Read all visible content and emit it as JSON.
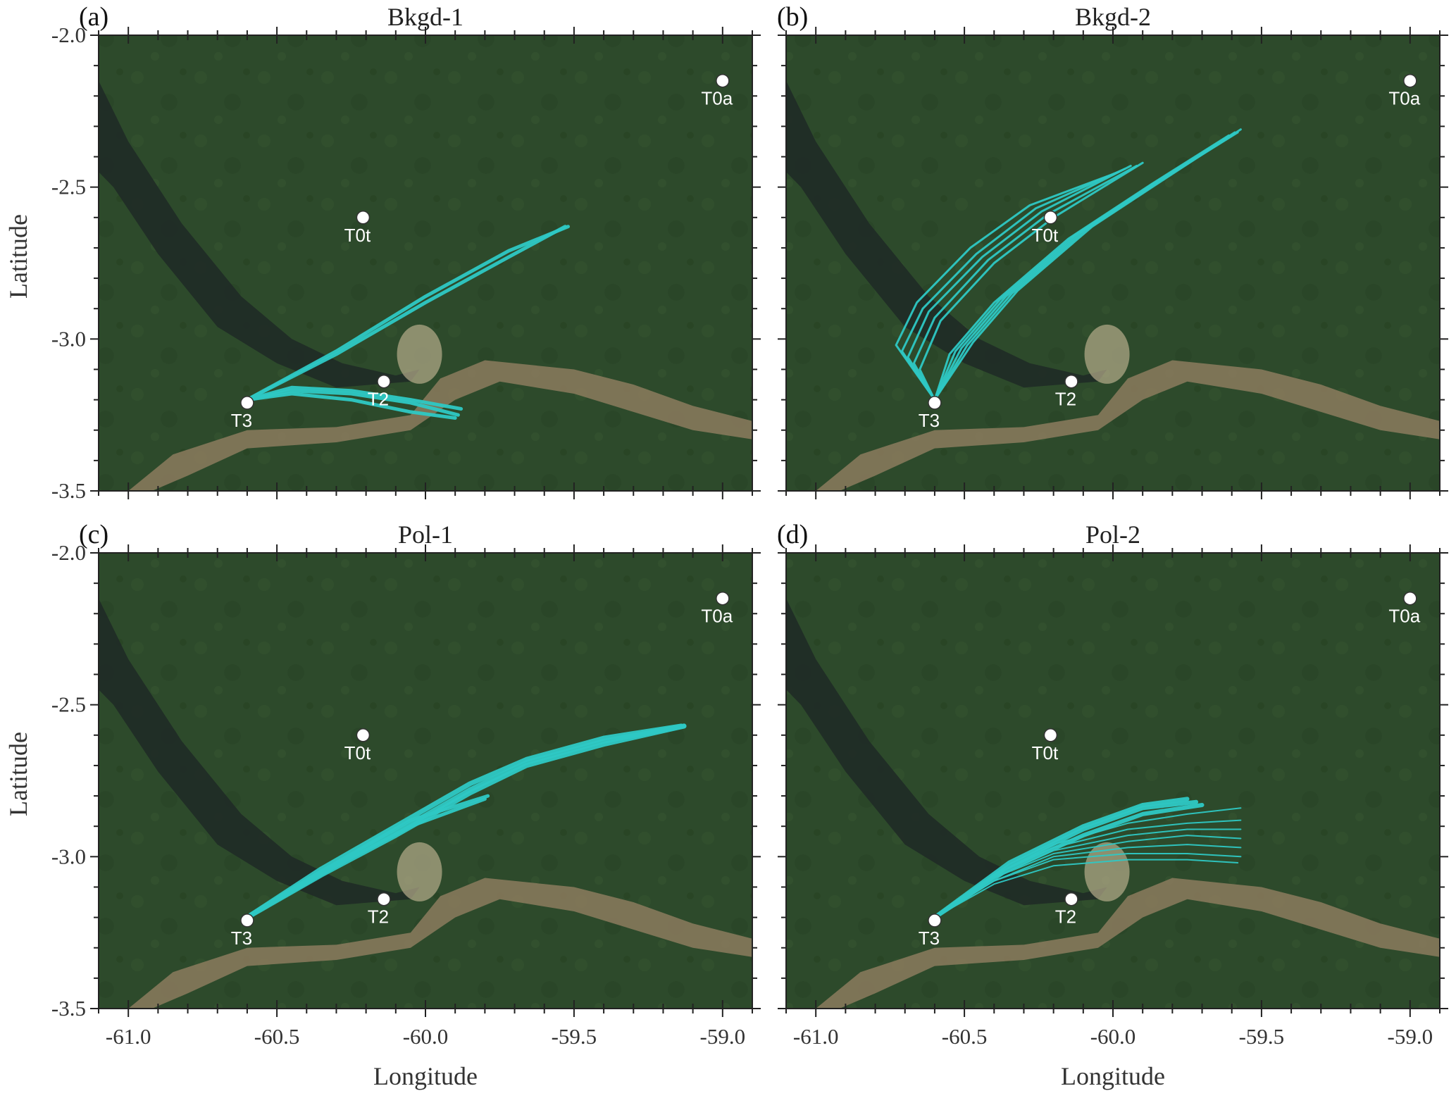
{
  "axes": {
    "xlabel": "Longitude",
    "ylabel": "Latitude",
    "xlim": [
      -61.1,
      -58.9
    ],
    "ylim": [
      -3.5,
      -2.0
    ],
    "xticks": [
      -61.0,
      -60.5,
      -60.0,
      -59.5,
      -59.0
    ],
    "yticks": [
      -2.0,
      -2.5,
      -3.0,
      -3.5
    ],
    "xtick_labels": [
      "-61.0",
      "-60.5",
      "-60.0",
      "-59.5",
      "-59.0"
    ],
    "ytick_labels": [
      "-2.0",
      "-2.5",
      "-3.0",
      "-3.5"
    ]
  },
  "colors": {
    "plume": "#2ec8c4",
    "forest": "#2c4a2a",
    "river_dark": "#1f2b26",
    "river_muddy": "#8c7b5e",
    "site_marker": "#ffffff"
  },
  "sites": [
    {
      "name": "T0a",
      "lon": -59.0,
      "lat": -2.15
    },
    {
      "name": "T0t",
      "lon": -60.21,
      "lat": -2.6
    },
    {
      "name": "T2",
      "lon": -60.14,
      "lat": -3.14
    },
    {
      "name": "T3",
      "lon": -60.6,
      "lat": -3.21
    }
  ],
  "panels": [
    {
      "letter": "(a)",
      "title": "Bkgd-1"
    },
    {
      "letter": "(b)",
      "title": "Bkgd-2"
    },
    {
      "letter": "(c)",
      "title": "Pol-1"
    },
    {
      "letter": "(d)",
      "title": "Pol-2"
    }
  ],
  "chart_data": [
    {
      "type": "scatter",
      "title": "Bkgd-1",
      "xlabel": "",
      "ylabel": "Latitude",
      "plume_color": "#2ec8c4",
      "plumes": [
        {
          "lines": [
            [
              [
                -60.6,
                -3.2
              ],
              [
                -60.3,
                -3.05
              ],
              [
                -60.0,
                -2.88
              ],
              [
                -59.72,
                -2.73
              ],
              [
                -59.53,
                -2.63
              ]
            ],
            [
              [
                -60.6,
                -3.2
              ],
              [
                -60.3,
                -3.04
              ],
              [
                -60.0,
                -2.86
              ],
              [
                -59.72,
                -2.71
              ],
              [
                -59.52,
                -2.63
              ]
            ]
          ],
          "width": 5
        },
        {
          "lines": [
            [
              [
                -60.6,
                -3.2
              ],
              [
                -60.45,
                -3.18
              ],
              [
                -60.25,
                -3.2
              ],
              [
                -60.05,
                -3.24
              ],
              [
                -59.9,
                -3.26
              ]
            ],
            [
              [
                -60.6,
                -3.2
              ],
              [
                -60.45,
                -3.17
              ],
              [
                -60.25,
                -3.18
              ],
              [
                -60.05,
                -3.21
              ],
              [
                -59.89,
                -3.25
              ]
            ],
            [
              [
                -60.6,
                -3.2
              ],
              [
                -60.45,
                -3.16
              ],
              [
                -60.25,
                -3.17
              ],
              [
                -60.05,
                -3.2
              ],
              [
                -59.88,
                -3.23
              ]
            ]
          ],
          "width": 5
        }
      ]
    },
    {
      "type": "scatter",
      "title": "Bkgd-2",
      "xlabel": "",
      "ylabel": "",
      "plume_color": "#2ec8c4",
      "plumes": [
        {
          "lines": [
            [
              [
                -60.6,
                -3.2
              ],
              [
                -60.65,
                -3.1
              ],
              [
                -60.58,
                -2.94
              ],
              [
                -60.4,
                -2.75
              ],
              [
                -60.2,
                -2.6
              ],
              [
                -59.9,
                -2.42
              ]
            ],
            [
              [
                -60.6,
                -3.2
              ],
              [
                -60.67,
                -3.08
              ],
              [
                -60.6,
                -2.93
              ],
              [
                -60.42,
                -2.74
              ],
              [
                -60.22,
                -2.59
              ],
              [
                -59.92,
                -2.43
              ]
            ],
            [
              [
                -60.6,
                -3.2
              ],
              [
                -60.69,
                -3.06
              ],
              [
                -60.62,
                -2.91
              ],
              [
                -60.44,
                -2.73
              ],
              [
                -60.24,
                -2.58
              ],
              [
                -59.94,
                -2.43
              ]
            ],
            [
              [
                -60.6,
                -3.2
              ],
              [
                -60.71,
                -3.04
              ],
              [
                -60.64,
                -2.9
              ],
              [
                -60.46,
                -2.72
              ],
              [
                -60.26,
                -2.57
              ],
              [
                -59.96,
                -2.44
              ]
            ],
            [
              [
                -60.6,
                -3.2
              ],
              [
                -60.73,
                -3.02
              ],
              [
                -60.66,
                -2.88
              ],
              [
                -60.48,
                -2.7
              ],
              [
                -60.28,
                -2.56
              ],
              [
                -59.98,
                -2.45
              ]
            ]
          ],
          "width": 3
        },
        {
          "lines": [
            [
              [
                -60.6,
                -3.2
              ],
              [
                -60.55,
                -3.05
              ],
              [
                -60.4,
                -2.88
              ],
              [
                -60.15,
                -2.67
              ],
              [
                -59.87,
                -2.49
              ],
              [
                -59.61,
                -2.33
              ]
            ],
            [
              [
                -60.6,
                -3.2
              ],
              [
                -60.53,
                -3.04
              ],
              [
                -60.38,
                -2.87
              ],
              [
                -60.13,
                -2.66
              ],
              [
                -59.85,
                -2.48
              ],
              [
                -59.6,
                -2.33
              ]
            ],
            [
              [
                -60.6,
                -3.2
              ],
              [
                -60.51,
                -3.03
              ],
              [
                -60.36,
                -2.86
              ],
              [
                -60.11,
                -2.65
              ],
              [
                -59.83,
                -2.47
              ],
              [
                -59.59,
                -2.32
              ]
            ],
            [
              [
                -60.6,
                -3.2
              ],
              [
                -60.49,
                -3.02
              ],
              [
                -60.34,
                -2.85
              ],
              [
                -60.09,
                -2.64
              ],
              [
                -59.81,
                -2.46
              ],
              [
                -59.58,
                -2.32
              ]
            ],
            [
              [
                -60.6,
                -3.2
              ],
              [
                -60.47,
                -3.01
              ],
              [
                -60.32,
                -2.84
              ],
              [
                -60.07,
                -2.63
              ],
              [
                -59.79,
                -2.45
              ],
              [
                -59.57,
                -2.31
              ]
            ]
          ],
          "width": 3
        }
      ]
    },
    {
      "type": "scatter",
      "title": "Pol-1",
      "xlabel": "Longitude",
      "ylabel": "Latitude",
      "plume_color": "#2ec8c4",
      "plumes": [
        {
          "lines": [
            [
              [
                -60.6,
                -3.2
              ],
              [
                -60.35,
                -3.06
              ],
              [
                -60.1,
                -2.93
              ],
              [
                -59.85,
                -2.79
              ],
              [
                -59.66,
                -2.7
              ],
              [
                -59.4,
                -2.63
              ],
              [
                -59.13,
                -2.57
              ]
            ],
            [
              [
                -60.6,
                -3.2
              ],
              [
                -60.35,
                -3.05
              ],
              [
                -60.1,
                -2.92
              ],
              [
                -59.85,
                -2.78
              ],
              [
                -59.66,
                -2.69
              ],
              [
                -59.4,
                -2.62
              ],
              [
                -59.13,
                -2.57
              ]
            ],
            [
              [
                -60.6,
                -3.2
              ],
              [
                -60.35,
                -3.04
              ],
              [
                -60.1,
                -2.9
              ],
              [
                -59.85,
                -2.76
              ],
              [
                -59.66,
                -2.68
              ],
              [
                -59.4,
                -2.61
              ],
              [
                -59.14,
                -2.57
              ]
            ]
          ],
          "width": 7
        },
        {
          "lines": [
            [
              [
                -60.6,
                -3.2
              ],
              [
                -60.3,
                -3.03
              ],
              [
                -60.05,
                -2.9
              ],
              [
                -59.8,
                -2.81
              ]
            ],
            [
              [
                -60.6,
                -3.2
              ],
              [
                -60.3,
                -3.02
              ],
              [
                -60.05,
                -2.88
              ],
              [
                -59.79,
                -2.8
              ]
            ]
          ],
          "width": 5
        }
      ]
    },
    {
      "type": "scatter",
      "title": "Pol-2",
      "xlabel": "Longitude",
      "ylabel": "",
      "plume_color": "#2ec8c4",
      "plumes": [
        {
          "lines": [
            [
              [
                -60.6,
                -3.2
              ],
              [
                -60.4,
                -3.06
              ],
              [
                -60.2,
                -2.96
              ],
              [
                -59.95,
                -2.89
              ],
              [
                -59.75,
                -2.86
              ],
              [
                -59.57,
                -2.84
              ]
            ],
            [
              [
                -60.6,
                -3.2
              ],
              [
                -60.4,
                -3.06
              ],
              [
                -60.2,
                -2.97
              ],
              [
                -59.95,
                -2.91
              ],
              [
                -59.75,
                -2.89
              ],
              [
                -59.57,
                -2.88
              ]
            ],
            [
              [
                -60.6,
                -3.2
              ],
              [
                -60.4,
                -3.07
              ],
              [
                -60.2,
                -2.98
              ],
              [
                -59.95,
                -2.93
              ],
              [
                -59.75,
                -2.91
              ],
              [
                -59.57,
                -2.91
              ]
            ],
            [
              [
                -60.6,
                -3.2
              ],
              [
                -60.4,
                -3.07
              ],
              [
                -60.2,
                -2.99
              ],
              [
                -59.95,
                -2.95
              ],
              [
                -59.75,
                -2.93
              ],
              [
                -59.57,
                -2.94
              ]
            ],
            [
              [
                -60.6,
                -3.2
              ],
              [
                -60.4,
                -3.08
              ],
              [
                -60.2,
                -3.0
              ],
              [
                -59.95,
                -2.97
              ],
              [
                -59.75,
                -2.96
              ],
              [
                -59.57,
                -2.97
              ]
            ],
            [
              [
                -60.6,
                -3.2
              ],
              [
                -60.4,
                -3.08
              ],
              [
                -60.2,
                -3.01
              ],
              [
                -59.95,
                -2.99
              ],
              [
                -59.75,
                -2.99
              ],
              [
                -59.57,
                -3.0
              ]
            ],
            [
              [
                -60.6,
                -3.2
              ],
              [
                -60.4,
                -3.09
              ],
              [
                -60.2,
                -3.03
              ],
              [
                -59.95,
                -3.01
              ],
              [
                -59.75,
                -3.01
              ],
              [
                -59.58,
                -3.02
              ]
            ]
          ],
          "width": 2
        },
        {
          "lines": [
            [
              [
                -60.6,
                -3.2
              ],
              [
                -60.35,
                -3.02
              ],
              [
                -60.1,
                -2.9
              ],
              [
                -59.9,
                -2.83
              ],
              [
                -59.75,
                -2.81
              ]
            ],
            [
              [
                -60.6,
                -3.2
              ],
              [
                -60.35,
                -3.03
              ],
              [
                -60.1,
                -2.91
              ],
              [
                -59.9,
                -2.84
              ],
              [
                -59.72,
                -2.82
              ]
            ],
            [
              [
                -60.6,
                -3.2
              ],
              [
                -60.35,
                -3.04
              ],
              [
                -60.1,
                -2.93
              ],
              [
                -59.9,
                -2.86
              ],
              [
                -59.7,
                -2.83
              ]
            ]
          ],
          "width": 6
        }
      ]
    }
  ]
}
